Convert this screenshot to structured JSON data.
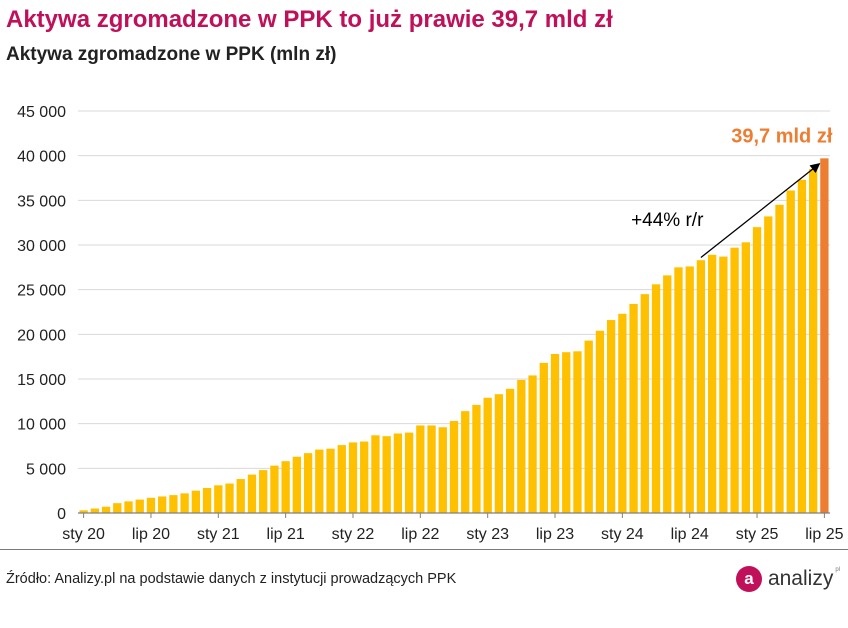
{
  "title": "Aktywa zgromadzone w PPK to już prawie 39,7 mld zł",
  "subtitle": "Aktywa zgromadzone w PPK (mln zł)",
  "source": "Źródło: Analizy.pl na podstawie danych z instytucji prowadzących PPK",
  "logo": {
    "mark": "a",
    "text": "analizy",
    "sup": "pl"
  },
  "colors": {
    "bar": "#FFC000",
    "highlight": "#ED7D31",
    "title": "#C0105A",
    "grid": "#D9D9D9",
    "axis": "#7F7F7F"
  },
  "chart_data": {
    "type": "bar",
    "title": "Aktywa zgromadzone w PPK (mln zł)",
    "xlabel": "",
    "ylabel": "mln zł",
    "ylim": [
      0,
      45000
    ],
    "yticks": [
      0,
      5000,
      10000,
      15000,
      20000,
      25000,
      30000,
      35000,
      40000,
      45000
    ],
    "ytick_labels": [
      "0",
      "5 000",
      "10 000",
      "15 000",
      "20 000",
      "25 000",
      "30 000",
      "35 000",
      "40 000",
      "45 000"
    ],
    "xtick_labels": [
      {
        "index": 0,
        "label": "sty 20"
      },
      {
        "index": 6,
        "label": "lip 20"
      },
      {
        "index": 12,
        "label": "sty 21"
      },
      {
        "index": 18,
        "label": "lip 21"
      },
      {
        "index": 24,
        "label": "sty 22"
      },
      {
        "index": 30,
        "label": "lip 22"
      },
      {
        "index": 36,
        "label": "sty 23"
      },
      {
        "index": 42,
        "label": "lip 23"
      },
      {
        "index": 48,
        "label": "sty 24"
      },
      {
        "index": 54,
        "label": "lip 24"
      },
      {
        "index": 60,
        "label": "sty 25"
      },
      {
        "index": 66,
        "label": "lip 25"
      }
    ],
    "values": [
      300,
      500,
      700,
      1100,
      1300,
      1500,
      1700,
      1850,
      2000,
      2200,
      2500,
      2800,
      3100,
      3300,
      3800,
      4300,
      4800,
      5300,
      5800,
      6300,
      6700,
      7100,
      7200,
      7600,
      7900,
      8000,
      8700,
      8600,
      8900,
      9000,
      9800,
      9800,
      9600,
      10300,
      11400,
      12100,
      12900,
      13300,
      13900,
      14900,
      15400,
      16800,
      17800,
      18000,
      18100,
      19300,
      20400,
      21600,
      22300,
      23400,
      24500,
      25600,
      26600,
      27500,
      27600,
      28300,
      28900,
      28700,
      29700,
      30300,
      32000,
      33200,
      34500,
      36100,
      37300,
      38500,
      39700
    ],
    "highlight_index": 66,
    "annotations": [
      {
        "text": "39,7 mld zł",
        "type": "value-label"
      },
      {
        "text": "+44% r/r",
        "type": "trend-arrow"
      }
    ]
  }
}
